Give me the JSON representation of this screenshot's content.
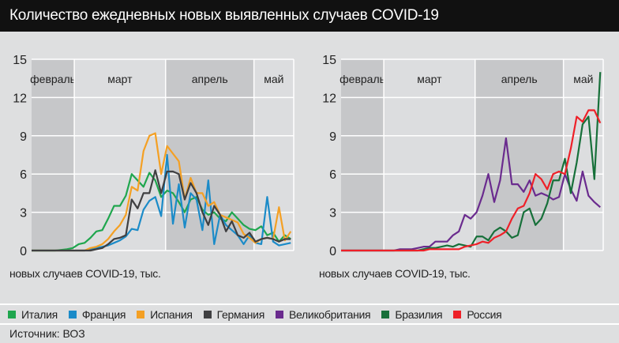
{
  "title": "Количество ежедневных новых выявленных случаев COVID-19",
  "source": "Источник: ВОЗ",
  "legend": [
    {
      "name": "Италия",
      "color": "#1fa64e"
    },
    {
      "name": "Франция",
      "color": "#1b8bc8"
    },
    {
      "name": "Испания",
      "color": "#f4a024"
    },
    {
      "name": "Германия",
      "color": "#3f3f41"
    },
    {
      "name": "Великобритания",
      "color": "#6a2b8e"
    },
    {
      "name": "Бразилия",
      "color": "#17703a"
    },
    {
      "name": "Россия",
      "color": "#ee2028"
    }
  ],
  "chart_data": [
    {
      "type": "line",
      "ylabel": "новых случаев COVID-19, тыс.",
      "ylim": [
        0,
        15
      ],
      "yticks": [
        0,
        3,
        6,
        9,
        12,
        15
      ],
      "grid": true,
      "months": [
        "февраль",
        "март",
        "апрель",
        "май"
      ],
      "x": [
        "15.02",
        "17.02",
        "19.02",
        "21.02",
        "23.02",
        "25.02",
        "27.02",
        "29.02",
        "02.03",
        "04.03",
        "06.03",
        "08.03",
        "10.03",
        "12.03",
        "14.03",
        "16.03",
        "18.03",
        "20.03",
        "22.03",
        "24.03",
        "26.03",
        "28.03",
        "30.03",
        "01.04",
        "03.04",
        "05.04",
        "07.04",
        "09.04",
        "11.04",
        "13.04",
        "15.04",
        "17.04",
        "19.04",
        "21.04",
        "23.04",
        "25.04",
        "27.04",
        "29.04",
        "01.05",
        "03.05",
        "05.05",
        "07.05",
        "09.05",
        "11.05",
        "13.05"
      ],
      "series": [
        {
          "name": "Италия",
          "color": "#1fa64e",
          "values": [
            0,
            0,
            0,
            0,
            0,
            0.05,
            0.1,
            0.2,
            0.5,
            0.6,
            1,
            1.5,
            1.6,
            2.5,
            3.5,
            3.5,
            4.3,
            6,
            5.5,
            5,
            6.1,
            5.5,
            4.2,
            4.7,
            4.5,
            3.8,
            3,
            4,
            4.2,
            3.2,
            2.8,
            3,
            2.5,
            2.3,
            3,
            2.5,
            2,
            1.7,
            1.6,
            1.9,
            1.2,
            1.4,
            0.7,
            1.2,
            0.9
          ]
        },
        {
          "name": "Франция",
          "color": "#1b8bc8",
          "values": [
            0,
            0,
            0,
            0,
            0,
            0,
            0,
            0,
            0,
            0,
            0.1,
            0.2,
            0.3,
            0.4,
            0.6,
            0.8,
            1.1,
            1.7,
            1.6,
            3.2,
            3.9,
            4.2,
            2.7,
            7.5,
            2.1,
            5.2,
            1.8,
            4.5,
            4,
            1.6,
            5.5,
            0.5,
            2.8,
            2,
            1.6,
            1.2,
            0.5,
            1.2,
            0.6,
            0.5,
            4.2,
            0.7,
            0.4,
            0.5,
            0.6
          ]
        },
        {
          "name": "Испания",
          "color": "#f4a024",
          "values": [
            0,
            0,
            0,
            0,
            0,
            0,
            0,
            0,
            0,
            0,
            0.2,
            0.3,
            0.5,
            0.9,
            1.5,
            2,
            2.8,
            5,
            4.7,
            7.8,
            9,
            9.2,
            6,
            8.2,
            7.6,
            7,
            4,
            5.7,
            4.5,
            4.5,
            3.5,
            3.8,
            2.8,
            2.6,
            2.4,
            2.2,
            1.3,
            1,
            0.6,
            0.9,
            1,
            0.9,
            3.4,
            0.8,
            1.5
          ]
        },
        {
          "name": "Германия",
          "color": "#3f3f41",
          "values": [
            0,
            0,
            0,
            0,
            0,
            0,
            0,
            0,
            0,
            0,
            0,
            0.1,
            0.2,
            0.5,
            0.9,
            1,
            1.2,
            4,
            3.3,
            4.5,
            4.5,
            6.3,
            4.5,
            6.2,
            6.2,
            6,
            4,
            5.3,
            4.5,
            3,
            2,
            3.5,
            2.8,
            1.5,
            2.3,
            1.2,
            1,
            1.4,
            0.7,
            0.9,
            1,
            0.9,
            0.7,
            0.9,
            0.9
          ]
        }
      ]
    },
    {
      "type": "line",
      "ylabel": "новых случаев COVID-19, тыс.",
      "ylim": [
        0,
        15
      ],
      "yticks": [
        0,
        3,
        6,
        9,
        12,
        15
      ],
      "grid": true,
      "months": [
        "февраль",
        "март",
        "апрель",
        "май"
      ],
      "x": [
        "15.02",
        "17.02",
        "19.02",
        "21.02",
        "23.02",
        "25.02",
        "27.02",
        "29.02",
        "02.03",
        "04.03",
        "06.03",
        "08.03",
        "10.03",
        "12.03",
        "14.03",
        "16.03",
        "18.03",
        "20.03",
        "22.03",
        "24.03",
        "26.03",
        "28.03",
        "30.03",
        "01.04",
        "03.04",
        "05.04",
        "07.04",
        "09.04",
        "11.04",
        "13.04",
        "15.04",
        "17.04",
        "19.04",
        "21.04",
        "23.04",
        "25.04",
        "27.04",
        "29.04",
        "01.05",
        "03.05",
        "05.05",
        "07.05",
        "09.05",
        "11.05",
        "13.05"
      ],
      "series": [
        {
          "name": "Великобритания",
          "color": "#6a2b8e",
          "values": [
            0,
            0,
            0,
            0,
            0,
            0,
            0,
            0,
            0,
            0,
            0.1,
            0.1,
            0.1,
            0.2,
            0.3,
            0.3,
            0.7,
            0.7,
            0.7,
            1.2,
            1.5,
            2.8,
            2.5,
            3,
            4.3,
            6,
            3.8,
            5.5,
            8.8,
            5.2,
            5.2,
            4.6,
            5.5,
            4.3,
            4.5,
            4.3,
            4,
            4.2,
            6,
            4.8,
            3.9,
            6.2,
            4.3,
            3.8,
            3.4
          ]
        },
        {
          "name": "Бразилия",
          "color": "#17703a",
          "values": [
            0,
            0,
            0,
            0,
            0,
            0,
            0,
            0,
            0,
            0,
            0,
            0,
            0,
            0,
            0.1,
            0.2,
            0.2,
            0.3,
            0.4,
            0.3,
            0.5,
            0.4,
            0.3,
            1.1,
            1.1,
            0.8,
            1.5,
            1.8,
            1.5,
            1,
            1.2,
            3,
            3.3,
            2,
            2.5,
            3.7,
            5.5,
            5.5,
            7.2,
            4.5,
            6.9,
            9.9,
            10.5,
            5.6,
            14
          ]
        },
        {
          "name": "Россия",
          "color": "#ee2028",
          "values": [
            0,
            0,
            0,
            0,
            0,
            0,
            0,
            0,
            0,
            0,
            0,
            0,
            0,
            0,
            0,
            0.1,
            0.1,
            0.1,
            0.1,
            0.1,
            0.1,
            0.3,
            0.4,
            0.5,
            0.7,
            0.6,
            1,
            1.2,
            1.5,
            2.5,
            3.3,
            3.5,
            4.5,
            6,
            5.6,
            4.8,
            6,
            6.2,
            6,
            8,
            10.5,
            10.1,
            11,
            11,
            10
          ]
        }
      ]
    }
  ]
}
